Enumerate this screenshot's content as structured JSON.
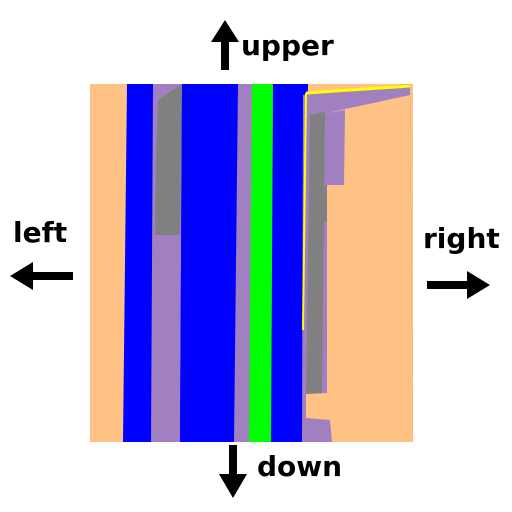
{
  "directions": {
    "upper": "upper",
    "left": "left",
    "right": "right",
    "down": "down"
  },
  "icons": {
    "upper": "arrow-up-icon",
    "left": "arrow-left-icon",
    "right": "arrow-right-icon",
    "down": "arrow-down-icon"
  },
  "colors": {
    "sidewalk": "#ffc184",
    "road": "#0000ff",
    "lane_marking": "#a080c0",
    "lane_green": "#00ff00",
    "obstacle": "#808080",
    "edge_line": "#ffff00",
    "arrow": "#000000"
  }
}
